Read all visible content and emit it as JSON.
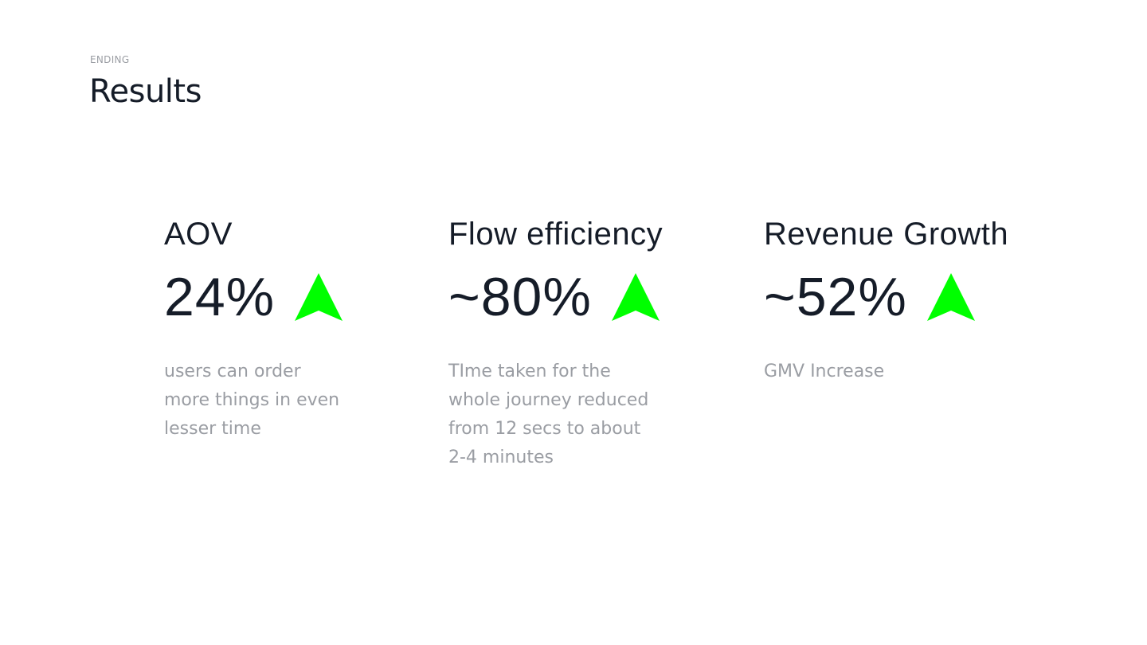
{
  "header": {
    "eyebrow": "ENDING",
    "title": "Results"
  },
  "accent_color": "#00ff00",
  "metrics": [
    {
      "label": "AOV",
      "value": "24%",
      "trend_icon": "up-arrow-icon",
      "description_lines": [
        "users can order",
        "more things in even",
        "lesser time"
      ]
    },
    {
      "label": "Flow efficiency",
      "value": "~80%",
      "trend_icon": "up-arrow-icon",
      "description_lines": [
        "TIme taken for the",
        "whole journey reduced",
        "from 12 secs to about",
        "2-4 minutes"
      ]
    },
    {
      "label": "Revenue Growth",
      "value": "~52%",
      "trend_icon": "up-arrow-icon",
      "description_lines": [
        "GMV Increase"
      ]
    }
  ]
}
